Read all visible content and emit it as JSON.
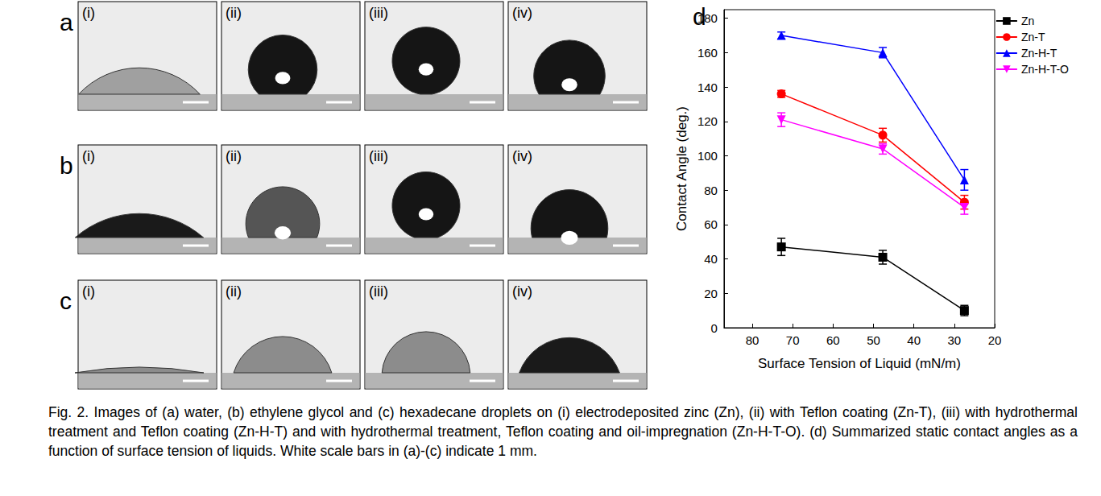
{
  "photos": {
    "rows": [
      "a",
      "b",
      "c"
    ],
    "columns": [
      "(i)",
      "(ii)",
      "(iii)",
      "(iv)"
    ]
  },
  "caption": "Fig. 2. Images of (a) water, (b) ethylene glycol and (c) hexadecane droplets on (i) electrodeposited zinc (Zn), (ii) with Teflon coating (Zn-T), (iii) with hydrothermal treatment and Teflon coating (Zn-H-T) and with hydrothermal treatment, Teflon coating and oil-impregnation (Zn-H-T-O). (d) Summarized static contact angles as a function of surface tension of liquids. White scale bars in (a)-(c) indicate 1 mm.",
  "chart_data": {
    "type": "line",
    "title": "d",
    "x_label": "Surface Tension of Liquid (mN/m)",
    "y_label": "Contact Angle (deg.)",
    "x": [
      72.8,
      47.7,
      27.5
    ],
    "xlim": [
      87,
      20
    ],
    "xticks": [
      80,
      70,
      60,
      50,
      40,
      30,
      20
    ],
    "ylim": [
      0,
      185
    ],
    "yticks": [
      0,
      20,
      40,
      60,
      80,
      100,
      120,
      140,
      160,
      180
    ],
    "grid": false,
    "legend": "upper right",
    "series": [
      {
        "name": "Zn",
        "color": "#000000",
        "marker": "square",
        "values": [
          47,
          41,
          10
        ],
        "errors": [
          5,
          4,
          3
        ]
      },
      {
        "name": "Zn-T",
        "color": "#ff0000",
        "marker": "circle",
        "values": [
          136,
          112,
          73
        ],
        "errors": [
          2,
          4,
          4
        ]
      },
      {
        "name": "Zn-H-T",
        "color": "#0000ff",
        "marker": "triangle",
        "values": [
          170,
          160,
          86
        ],
        "errors": [
          2,
          3,
          6
        ]
      },
      {
        "name": "Zn-H-T-O",
        "color": "#ff00ff",
        "marker": "triangle_down",
        "values": [
          121,
          104,
          70
        ],
        "errors": [
          4,
          3,
          4
        ]
      }
    ]
  }
}
